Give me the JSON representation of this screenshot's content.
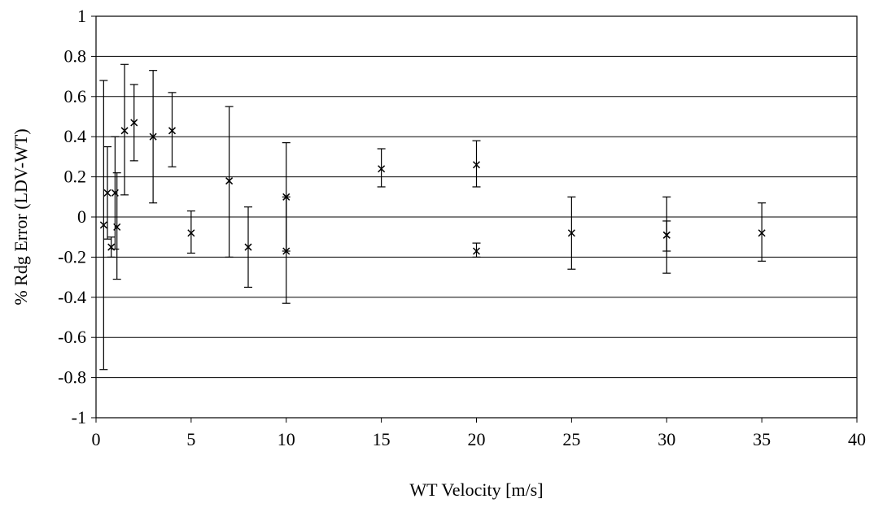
{
  "chart_data": {
    "type": "scatter",
    "title": "",
    "xlabel": "WT Velocity [m/s]",
    "ylabel": "% Rdg Error (LDV-WT)",
    "xlim": [
      0,
      40
    ],
    "ylim": [
      -1,
      1
    ],
    "xticks": [
      "0",
      "5",
      "10",
      "15",
      "20",
      "25",
      "30",
      "35",
      "40"
    ],
    "yticks": [
      "1",
      "0.8",
      "0.6",
      "0.4",
      "0.2",
      "0",
      "-0.2",
      "-0.4",
      "-0.6",
      "-0.8",
      "-1"
    ],
    "grid": "horizontal",
    "legend": "none",
    "marker": "x",
    "points": [
      {
        "x": 0.4,
        "y": -0.04,
        "low": -0.76,
        "high": 0.68
      },
      {
        "x": 0.6,
        "y": 0.12,
        "low": -0.11,
        "high": 0.35
      },
      {
        "x": 0.8,
        "y": -0.15,
        "low": -0.2,
        "high": -0.1
      },
      {
        "x": 1.0,
        "y": 0.12,
        "low": -0.16,
        "high": 0.4
      },
      {
        "x": 1.1,
        "y": -0.05,
        "low": -0.31,
        "high": 0.22
      },
      {
        "x": 1.5,
        "y": 0.43,
        "low": 0.11,
        "high": 0.76
      },
      {
        "x": 2.0,
        "y": 0.47,
        "low": 0.28,
        "high": 0.66
      },
      {
        "x": 3.0,
        "y": 0.4,
        "low": 0.07,
        "high": 0.73
      },
      {
        "x": 4.0,
        "y": 0.43,
        "low": 0.25,
        "high": 0.62
      },
      {
        "x": 5.0,
        "y": -0.08,
        "low": -0.18,
        "high": 0.03
      },
      {
        "x": 7.0,
        "y": 0.18,
        "low": -0.2,
        "high": 0.55
      },
      {
        "x": 8.0,
        "y": -0.15,
        "low": -0.35,
        "high": 0.05
      },
      {
        "x": 10.0,
        "y": -0.17,
        "low": -0.43,
        "high": 0.1
      },
      {
        "x": 10.0,
        "y": 0.1,
        "low": -0.17,
        "high": 0.37
      },
      {
        "x": 15.0,
        "y": 0.24,
        "low": 0.15,
        "high": 0.34
      },
      {
        "x": 20.0,
        "y": 0.26,
        "low": 0.15,
        "high": 0.38
      },
      {
        "x": 20.0,
        "y": -0.17,
        "low": -0.2,
        "high": -0.13
      },
      {
        "x": 25.0,
        "y": -0.08,
        "low": -0.26,
        "high": 0.1
      },
      {
        "x": 30.0,
        "y": -0.09,
        "low": -0.28,
        "high": 0.1
      },
      {
        "x": 30.0,
        "y": -0.09,
        "low": -0.17,
        "high": -0.02
      },
      {
        "x": 35.0,
        "y": -0.08,
        "low": -0.22,
        "high": 0.07
      }
    ]
  }
}
